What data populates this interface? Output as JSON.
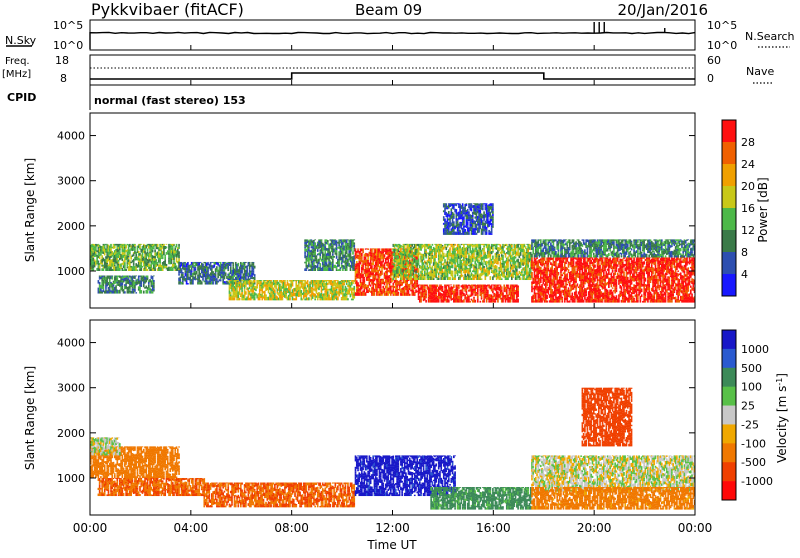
{
  "header": {
    "station": "Pykkvibaer (fitACF)",
    "beam": "Beam 09",
    "date": "20/Jan/2016"
  },
  "noise_panel": {
    "left_label": "N.Sky",
    "right_label": "N.Search",
    "left_ticks": [
      "10^5",
      "10^0"
    ],
    "right_ticks": [
      "10^5",
      "10^0"
    ]
  },
  "freq_panel": {
    "left_label_top": "Freq.",
    "left_label_unit": "[MHz]",
    "left_ticks": [
      "18",
      "8"
    ],
    "right_label": "Nave",
    "right_ticks": [
      "60",
      "0"
    ],
    "cpid_label": "CPID",
    "mode_text": "normal (fast stereo) 153"
  },
  "axes": {
    "ylabel": "Slant Range [km]",
    "xlabel": "Time UT",
    "y_ticks": [
      "1000",
      "2000",
      "3000",
      "4000"
    ],
    "x_ticks": [
      "00:00",
      "04:00",
      "08:00",
      "12:00",
      "16:00",
      "20:00",
      "00:00"
    ]
  },
  "power_colorbar": {
    "title": "Power [dB]",
    "ticks": [
      "4",
      "8",
      "12",
      "16",
      "20",
      "24",
      "28"
    ],
    "colors": [
      "#1818ff",
      "#2d4fb0",
      "#3a7a48",
      "#4cb848",
      "#c8c818",
      "#f0a000",
      "#f06000",
      "#ff1010"
    ]
  },
  "velocity_colorbar": {
    "title": "Velocity [m s-1]",
    "ticks": [
      "1000",
      "500",
      "100",
      "25",
      "-25",
      "-100",
      "-500",
      "-1000"
    ],
    "colors": [
      "#1818c8",
      "#2a5ad0",
      "#3c8a58",
      "#58c048",
      "#c8c8c8",
      "#f0a800",
      "#f07800",
      "#f04000",
      "#ff0808"
    ]
  },
  "chart_data": {
    "type": "heatmap",
    "title": "Pykkvibaer (fitACF) Beam 09 20/Jan/2016",
    "xlabel": "Time UT",
    "ylabel": "Slant Range [km]",
    "xlim": [
      0,
      24
    ],
    "ylim": [
      180,
      4500
    ],
    "frequency_mhz_segments": [
      {
        "t_start": 0,
        "t_end": 8,
        "value": 10
      },
      {
        "t_start": 8,
        "t_end": 18,
        "value": 12
      },
      {
        "t_start": 18,
        "t_end": 24,
        "value": 10
      }
    ],
    "power_db_regions": [
      {
        "t_start": 0.0,
        "t_end": 3.5,
        "range_km": [
          1000,
          1600
        ],
        "power_db": 14
      },
      {
        "t_start": 0.3,
        "t_end": 2.5,
        "range_km": [
          500,
          900
        ],
        "power_db": 10
      },
      {
        "t_start": 3.5,
        "t_end": 6.5,
        "range_km": [
          700,
          1200
        ],
        "power_db": 8
      },
      {
        "t_start": 5.5,
        "t_end": 10.5,
        "range_km": [
          350,
          800
        ],
        "power_db": 18
      },
      {
        "t_start": 8.5,
        "t_end": 10.5,
        "range_km": [
          1000,
          1700
        ],
        "power_db": 10
      },
      {
        "t_start": 10.5,
        "t_end": 13.0,
        "range_km": [
          450,
          1500
        ],
        "power_db": 28
      },
      {
        "t_start": 13.0,
        "t_end": 17.0,
        "range_km": [
          300,
          700
        ],
        "power_db": 30
      },
      {
        "t_start": 12.0,
        "t_end": 17.5,
        "range_km": [
          800,
          1600
        ],
        "power_db": 16
      },
      {
        "t_start": 14.0,
        "t_end": 16.0,
        "range_km": [
          1800,
          2500
        ],
        "power_db": 6
      },
      {
        "t_start": 17.5,
        "t_end": 24.0,
        "range_km": [
          300,
          1300
        ],
        "power_db": 30
      },
      {
        "t_start": 17.5,
        "t_end": 24.0,
        "range_km": [
          1300,
          1700
        ],
        "power_db": 10
      }
    ],
    "velocity_ms_regions": [
      {
        "t_start": 0.0,
        "t_end": 3.5,
        "range_km": [
          1000,
          1700
        ],
        "velocity": -200
      },
      {
        "t_start": 0.0,
        "t_end": 1.2,
        "range_km": [
          1500,
          1900
        ],
        "velocity": 0
      },
      {
        "t_start": 0.3,
        "t_end": 4.5,
        "range_km": [
          600,
          1000
        ],
        "velocity": -300
      },
      {
        "t_start": 4.5,
        "t_end": 10.5,
        "range_km": [
          350,
          900
        ],
        "velocity": -300
      },
      {
        "t_start": 10.5,
        "t_end": 14.5,
        "range_km": [
          600,
          1500
        ],
        "velocity": 800
      },
      {
        "t_start": 13.5,
        "t_end": 17.5,
        "range_km": [
          300,
          800
        ],
        "velocity": 100
      },
      {
        "t_start": 17.5,
        "t_end": 24.0,
        "range_km": [
          700,
          1500
        ],
        "velocity": 0
      },
      {
        "t_start": 17.5,
        "t_end": 24.0,
        "range_km": [
          300,
          800
        ],
        "velocity": -150
      },
      {
        "t_start": 19.5,
        "t_end": 21.5,
        "range_km": [
          1700,
          3000
        ],
        "velocity": -400
      }
    ]
  }
}
